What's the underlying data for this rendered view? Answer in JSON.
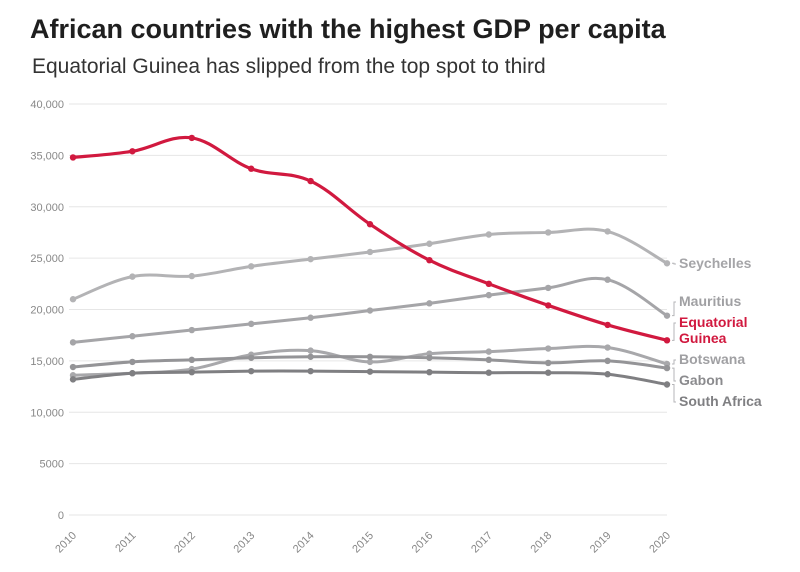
{
  "chart_data": {
    "type": "line",
    "title": "African countries with the highest GDP per capita",
    "subtitle": "Equatorial Guinea has slipped from the top spot to third",
    "xlabel": "",
    "ylabel": "",
    "x": [
      2010,
      2011,
      2012,
      2013,
      2014,
      2015,
      2016,
      2017,
      2018,
      2019,
      2020
    ],
    "ylim": [
      0,
      40000
    ],
    "yticks": [
      0,
      5000,
      10000,
      15000,
      20000,
      25000,
      30000,
      35000,
      40000
    ],
    "ytick_labels": [
      "0",
      "5000",
      "10,000",
      "15,000",
      "20,000",
      "25,000",
      "30,000",
      "35,000",
      "40,000"
    ],
    "grid": true,
    "legend": "direct labels at right",
    "series": [
      {
        "name": "Seychelles",
        "color": "#b3b3b5",
        "values": [
          21000,
          23200,
          23250,
          24200,
          24900,
          25600,
          26400,
          27300,
          27500,
          27600,
          24500
        ]
      },
      {
        "name": "Mauritius",
        "color": "#a5a5a8",
        "values": [
          16800,
          17400,
          18000,
          18600,
          19200,
          19900,
          20600,
          21400,
          22100,
          22900,
          19400
        ]
      },
      {
        "name": "Botswana",
        "color": "#a8a8ab",
        "values": [
          13600,
          13800,
          14200,
          15600,
          16000,
          14900,
          15700,
          15900,
          16200,
          16300,
          14700
        ]
      },
      {
        "name": "Gabon",
        "color": "#949497",
        "values": [
          14400,
          14900,
          15100,
          15300,
          15400,
          15400,
          15300,
          15100,
          14800,
          15000,
          14300
        ]
      },
      {
        "name": "South Africa",
        "color": "#7f7f82",
        "values": [
          13200,
          13800,
          13900,
          14000,
          14000,
          13950,
          13900,
          13850,
          13850,
          13700,
          12700
        ]
      },
      {
        "name": "Equatorial Guinea",
        "color": "#d1193f",
        "values": [
          34800,
          35400,
          36700,
          33700,
          32500,
          28300,
          24800,
          22500,
          20400,
          18500,
          17000
        ]
      }
    ],
    "labels": [
      {
        "series": "Seychelles",
        "text": "Seychelles",
        "color": "#a5a5a8"
      },
      {
        "series": "Mauritius",
        "text": "Mauritius",
        "color": "#a0a0a3"
      },
      {
        "series": "Equatorial Guinea",
        "text": "Equatorial",
        "text2": "Guinea",
        "color": "#d1193f"
      },
      {
        "series": "Botswana",
        "text": "Botswana",
        "color": "#a0a0a3"
      },
      {
        "series": "Gabon",
        "text": "Gabon",
        "color": "#8b8b8e"
      },
      {
        "series": "South Africa",
        "text": "South Africa",
        "color": "#7f7f82"
      }
    ]
  }
}
